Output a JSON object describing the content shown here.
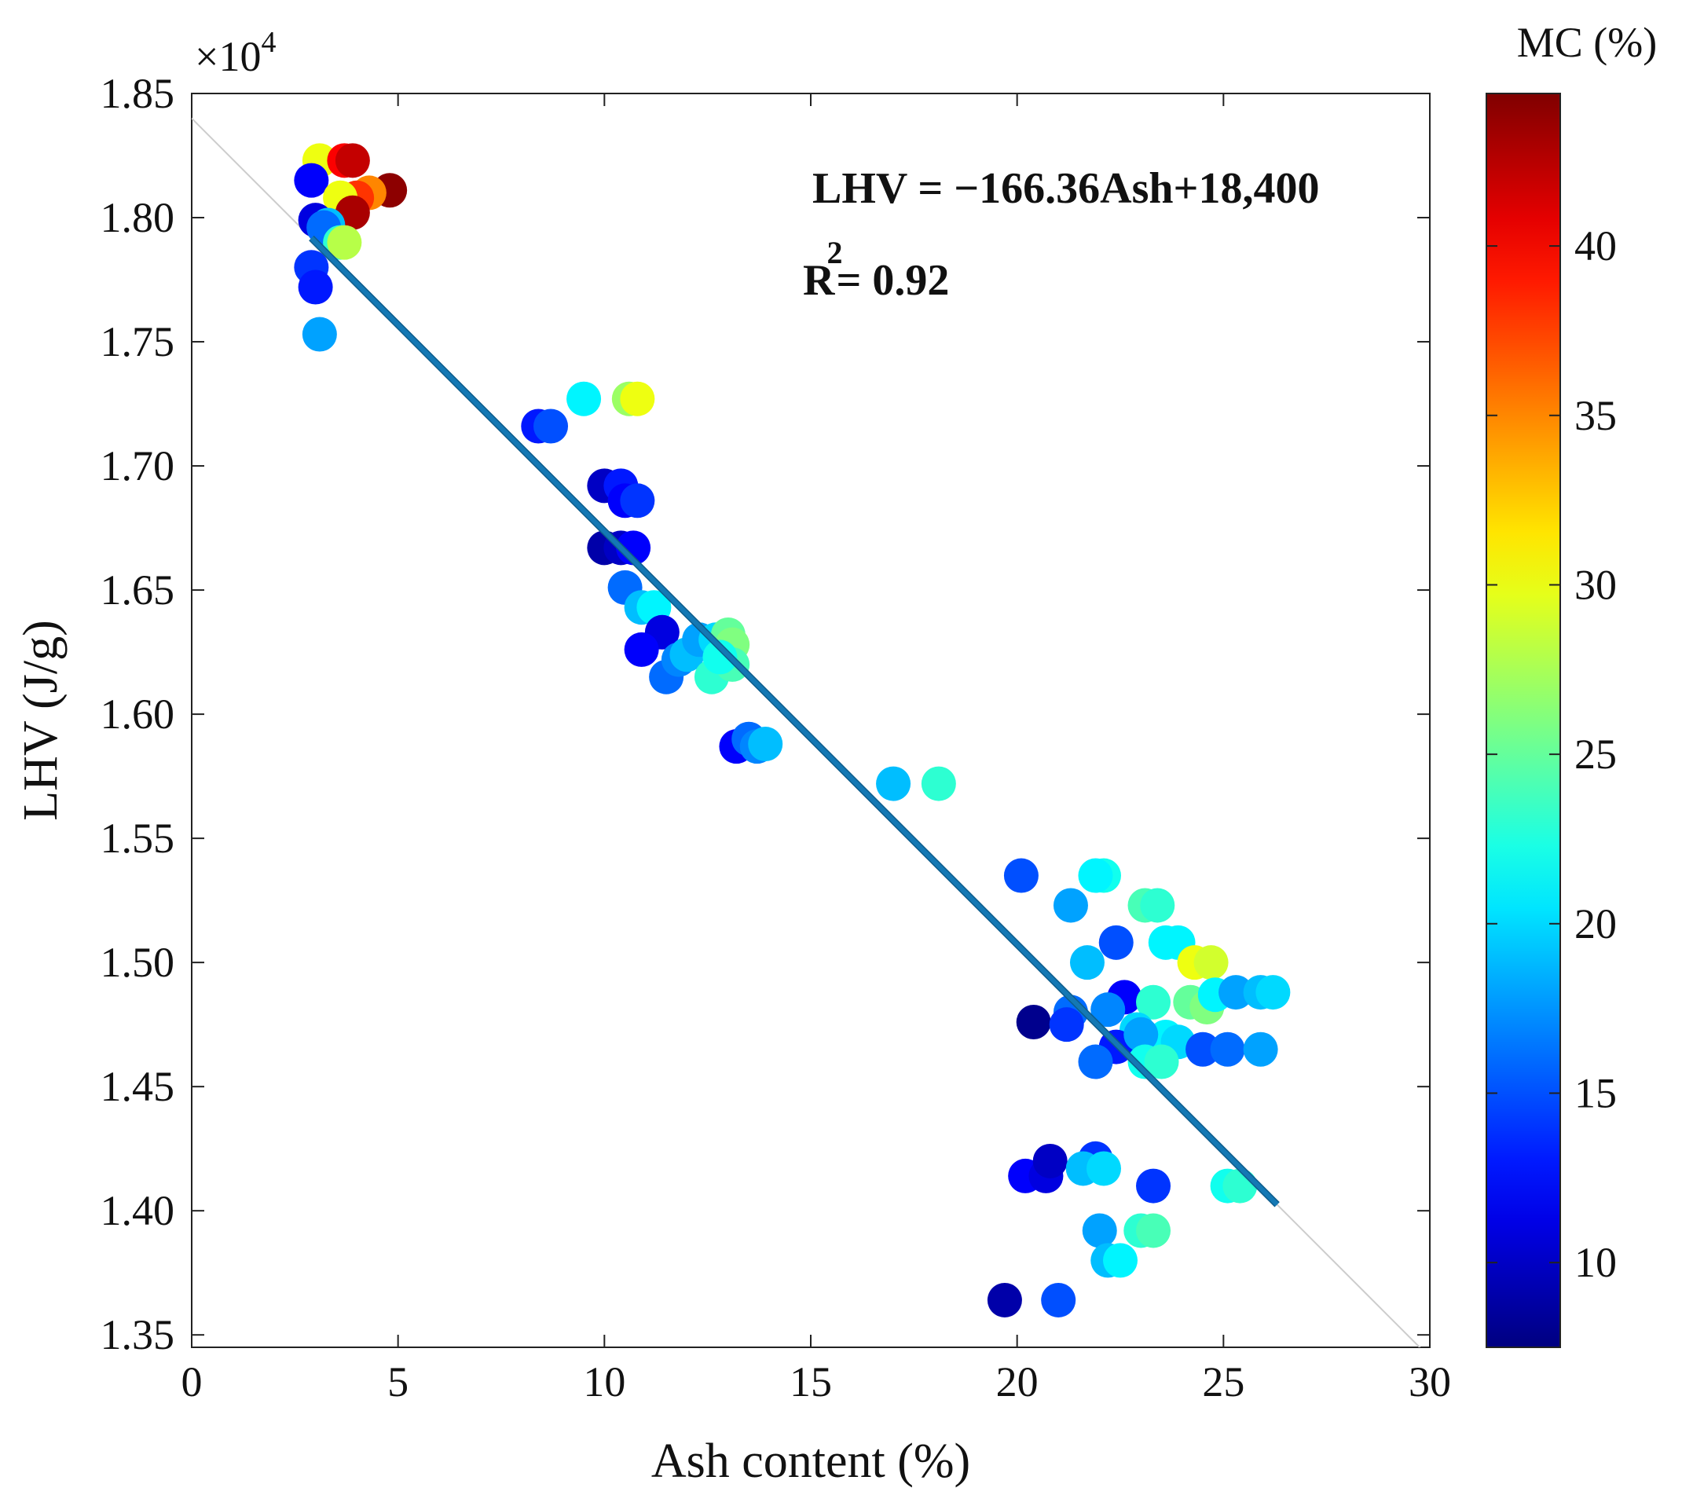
{
  "chart_data": {
    "type": "scatter",
    "title": "",
    "xlabel": "Ash content (%)",
    "ylabel": "LHV (J/g)",
    "xlim": [
      0,
      30
    ],
    "ylim": [
      13450,
      18500
    ],
    "x_ticks": [
      0,
      5,
      10,
      15,
      20,
      25,
      30
    ],
    "y_ticks": [
      1.35,
      1.4,
      1.45,
      1.5,
      1.55,
      1.6,
      1.65,
      1.7,
      1.75,
      1.8,
      1.85
    ],
    "y_tick_labels": [
      "1.35",
      "1.40",
      "1.45",
      "1.50",
      "1.55",
      "1.60",
      "1.65",
      "1.70",
      "1.75",
      "1.80",
      "1.85"
    ],
    "y_multiplier": "×10",
    "y_multiplier_exponent": "4",
    "equation": "LHV = −166.36Ash+18,400",
    "r2_prefix": "R",
    "r2_sup": "2",
    "r2_value": "= 0.92",
    "fit": {
      "slope": -166.36,
      "intercept": 18400,
      "x_start": 2.9,
      "x_end": 26.3
    },
    "colorbar": {
      "title": "MC (%)",
      "min": 7.5,
      "max": 44.5,
      "ticks": [
        10,
        15,
        20,
        25,
        30,
        35,
        40
      ]
    },
    "colors": {
      "fit_line": "#1478b4",
      "fit_line_edge": "#0d5c8c",
      "identity_line": "#cccccc"
    },
    "points": [
      {
        "x": 3.1,
        "y": 18230,
        "mc": 30
      },
      {
        "x": 3.7,
        "y": 18230,
        "mc": 40
      },
      {
        "x": 3.9,
        "y": 18230,
        "mc": 42
      },
      {
        "x": 2.9,
        "y": 18150,
        "mc": 12
      },
      {
        "x": 4.8,
        "y": 18110,
        "mc": 44
      },
      {
        "x": 4.3,
        "y": 18100,
        "mc": 35
      },
      {
        "x": 4.0,
        "y": 18080,
        "mc": 38
      },
      {
        "x": 3.6,
        "y": 18080,
        "mc": 30
      },
      {
        "x": 3.9,
        "y": 18020,
        "mc": 43
      },
      {
        "x": 3.0,
        "y": 17990,
        "mc": 11
      },
      {
        "x": 3.3,
        "y": 17970,
        "mc": 19
      },
      {
        "x": 3.2,
        "y": 17960,
        "mc": 16
      },
      {
        "x": 3.6,
        "y": 17900,
        "mc": 23
      },
      {
        "x": 3.7,
        "y": 17900,
        "mc": 28
      },
      {
        "x": 2.9,
        "y": 17800,
        "mc": 14
      },
      {
        "x": 3.0,
        "y": 17720,
        "mc": 13
      },
      {
        "x": 3.1,
        "y": 17530,
        "mc": 18
      },
      {
        "x": 9.5,
        "y": 17270,
        "mc": 21
      },
      {
        "x": 10.6,
        "y": 17270,
        "mc": 27
      },
      {
        "x": 10.8,
        "y": 17270,
        "mc": 30
      },
      {
        "x": 8.4,
        "y": 17160,
        "mc": 13
      },
      {
        "x": 8.7,
        "y": 17160,
        "mc": 15
      },
      {
        "x": 10.0,
        "y": 16920,
        "mc": 10
      },
      {
        "x": 10.4,
        "y": 16920,
        "mc": 13
      },
      {
        "x": 10.5,
        "y": 16860,
        "mc": 12
      },
      {
        "x": 10.8,
        "y": 16860,
        "mc": 14
      },
      {
        "x": 10.0,
        "y": 16670,
        "mc": 9
      },
      {
        "x": 10.4,
        "y": 16670,
        "mc": 10
      },
      {
        "x": 10.7,
        "y": 16670,
        "mc": 12
      },
      {
        "x": 10.5,
        "y": 16510,
        "mc": 16
      },
      {
        "x": 10.9,
        "y": 16430,
        "mc": 19
      },
      {
        "x": 11.2,
        "y": 16430,
        "mc": 21
      },
      {
        "x": 11.4,
        "y": 16330,
        "mc": 11
      },
      {
        "x": 10.9,
        "y": 16260,
        "mc": 12
      },
      {
        "x": 11.5,
        "y": 16150,
        "mc": 16
      },
      {
        "x": 11.8,
        "y": 16220,
        "mc": 17
      },
      {
        "x": 12.0,
        "y": 16240,
        "mc": 19
      },
      {
        "x": 12.6,
        "y": 16150,
        "mc": 23
      },
      {
        "x": 12.3,
        "y": 16300,
        "mc": 18
      },
      {
        "x": 12.7,
        "y": 16300,
        "mc": 20
      },
      {
        "x": 13.0,
        "y": 16320,
        "mc": 25
      },
      {
        "x": 13.1,
        "y": 16280,
        "mc": 26
      },
      {
        "x": 13.1,
        "y": 16200,
        "mc": 24
      },
      {
        "x": 12.8,
        "y": 16230,
        "mc": 22
      },
      {
        "x": 13.2,
        "y": 15870,
        "mc": 12
      },
      {
        "x": 13.5,
        "y": 15900,
        "mc": 16
      },
      {
        "x": 13.7,
        "y": 15870,
        "mc": 17
      },
      {
        "x": 13.9,
        "y": 15880,
        "mc": 19
      },
      {
        "x": 17.0,
        "y": 15720,
        "mc": 19
      },
      {
        "x": 18.1,
        "y": 15720,
        "mc": 23
      },
      {
        "x": 20.1,
        "y": 15350,
        "mc": 15
      },
      {
        "x": 22.1,
        "y": 15350,
        "mc": 22
      },
      {
        "x": 21.9,
        "y": 15350,
        "mc": 21
      },
      {
        "x": 21.3,
        "y": 15230,
        "mc": 18
      },
      {
        "x": 23.1,
        "y": 15230,
        "mc": 24
      },
      {
        "x": 23.4,
        "y": 15230,
        "mc": 23
      },
      {
        "x": 22.4,
        "y": 15080,
        "mc": 15
      },
      {
        "x": 23.6,
        "y": 15080,
        "mc": 21
      },
      {
        "x": 23.9,
        "y": 15080,
        "mc": 21
      },
      {
        "x": 21.7,
        "y": 15000,
        "mc": 19
      },
      {
        "x": 24.3,
        "y": 15000,
        "mc": 30
      },
      {
        "x": 24.7,
        "y": 15000,
        "mc": 29
      },
      {
        "x": 22.6,
        "y": 14860,
        "mc": 12
      },
      {
        "x": 23.3,
        "y": 14840,
        "mc": 23
      },
      {
        "x": 24.2,
        "y": 14840,
        "mc": 25
      },
      {
        "x": 24.6,
        "y": 14820,
        "mc": 26
      },
      {
        "x": 24.8,
        "y": 14870,
        "mc": 21
      },
      {
        "x": 25.3,
        "y": 14880,
        "mc": 18
      },
      {
        "x": 25.9,
        "y": 14880,
        "mc": 19
      },
      {
        "x": 26.2,
        "y": 14880,
        "mc": 20
      },
      {
        "x": 22.2,
        "y": 14810,
        "mc": 17
      },
      {
        "x": 21.3,
        "y": 14800,
        "mc": 16
      },
      {
        "x": 20.4,
        "y": 14760,
        "mc": 8
      },
      {
        "x": 21.2,
        "y": 14750,
        "mc": 14
      },
      {
        "x": 22.9,
        "y": 14730,
        "mc": 20
      },
      {
        "x": 23.6,
        "y": 14700,
        "mc": 21
      },
      {
        "x": 23.9,
        "y": 14680,
        "mc": 20
      },
      {
        "x": 22.4,
        "y": 14660,
        "mc": 13
      },
      {
        "x": 23.0,
        "y": 14710,
        "mc": 18
      },
      {
        "x": 24.5,
        "y": 14650,
        "mc": 15
      },
      {
        "x": 25.1,
        "y": 14650,
        "mc": 16
      },
      {
        "x": 25.9,
        "y": 14650,
        "mc": 18
      },
      {
        "x": 21.9,
        "y": 14600,
        "mc": 16
      },
      {
        "x": 23.1,
        "y": 14600,
        "mc": 22
      },
      {
        "x": 23.5,
        "y": 14600,
        "mc": 23
      },
      {
        "x": 20.2,
        "y": 14140,
        "mc": 12
      },
      {
        "x": 20.7,
        "y": 14140,
        "mc": 11
      },
      {
        "x": 20.8,
        "y": 14200,
        "mc": 10
      },
      {
        "x": 21.9,
        "y": 14210,
        "mc": 14
      },
      {
        "x": 21.6,
        "y": 14170,
        "mc": 19
      },
      {
        "x": 22.1,
        "y": 14170,
        "mc": 20
      },
      {
        "x": 23.3,
        "y": 14100,
        "mc": 14
      },
      {
        "x": 25.1,
        "y": 14100,
        "mc": 22
      },
      {
        "x": 25.4,
        "y": 14100,
        "mc": 23
      },
      {
        "x": 22.0,
        "y": 13920,
        "mc": 18
      },
      {
        "x": 23.0,
        "y": 13920,
        "mc": 23
      },
      {
        "x": 23.3,
        "y": 13920,
        "mc": 24
      },
      {
        "x": 22.2,
        "y": 13800,
        "mc": 19
      },
      {
        "x": 22.5,
        "y": 13800,
        "mc": 21
      },
      {
        "x": 19.7,
        "y": 13640,
        "mc": 9
      },
      {
        "x": 21.0,
        "y": 13640,
        "mc": 15
      }
    ]
  }
}
